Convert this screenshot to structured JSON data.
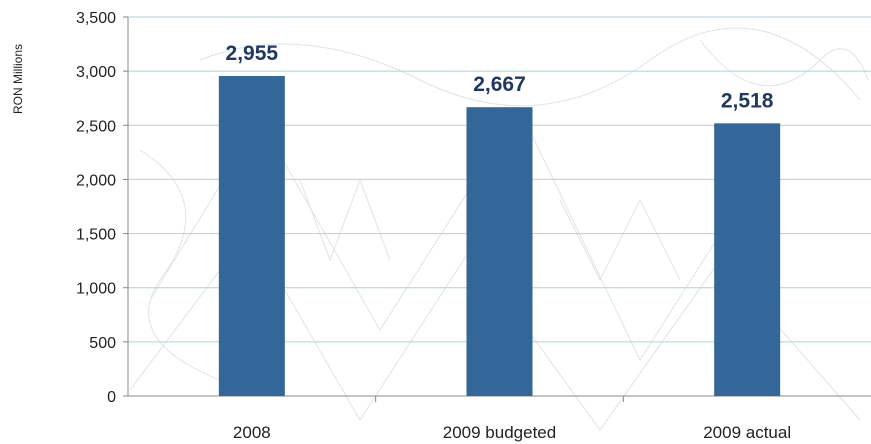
{
  "chart_data": {
    "type": "bar",
    "categories": [
      "2008",
      "2009 budgeted",
      "2009 actual"
    ],
    "values": [
      2955,
      2667,
      2518
    ],
    "data_labels": [
      "2,955",
      "2,667",
      "2,518"
    ],
    "title": "",
    "xlabel": "",
    "ylabel": "RON Millions",
    "ylim": [
      0,
      3500
    ],
    "yticks": [
      0,
      500,
      1000,
      1500,
      2000,
      2500,
      3000,
      3500
    ],
    "ytick_labels": [
      "0",
      "500",
      "1,000",
      "1,500",
      "2,000",
      "2,500",
      "3,000",
      "3,500"
    ],
    "grid": true,
    "legend": "none",
    "colors": {
      "bar": "#336699",
      "data_label": "#1f3864",
      "grid": "#a9d4dc",
      "axis": "#888888"
    }
  }
}
